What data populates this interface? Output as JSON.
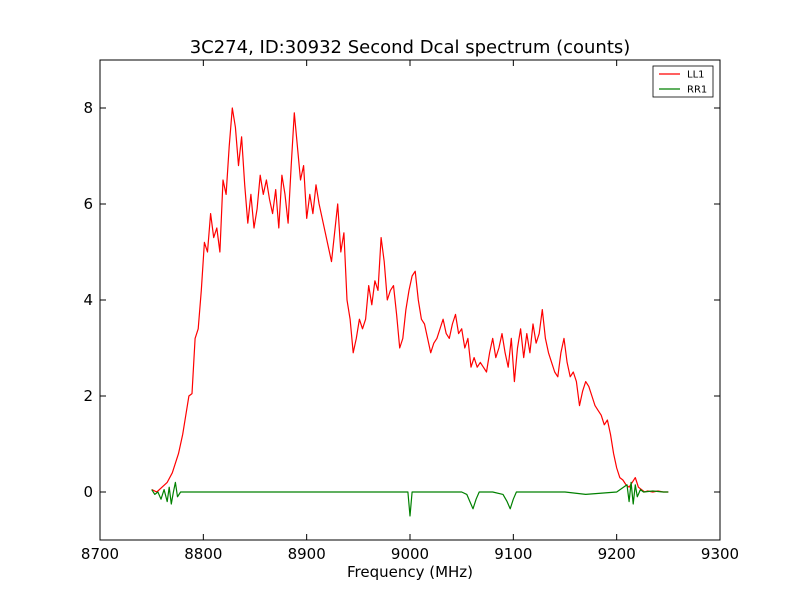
{
  "chart_data": {
    "type": "line",
    "title": "3C274, ID:30932 Second Dcal spectrum (counts)",
    "xlabel": "Frequency (MHz)",
    "ylabel": "",
    "xlim": [
      8700,
      9300
    ],
    "ylim": [
      -1,
      9
    ],
    "xticks": [
      8700,
      8800,
      8900,
      9000,
      9100,
      9200,
      9300
    ],
    "yticks": [
      0,
      2,
      4,
      6,
      8
    ],
    "grid": false,
    "legend_position": "top-right",
    "series": [
      {
        "name": "LL1",
        "color": "#ff0000",
        "points": [
          [
            8750,
            0.05
          ],
          [
            8755,
            0.0
          ],
          [
            8760,
            0.1
          ],
          [
            8765,
            0.2
          ],
          [
            8770,
            0.4
          ],
          [
            8773,
            0.6
          ],
          [
            8776,
            0.8
          ],
          [
            8780,
            1.2
          ],
          [
            8783,
            1.6
          ],
          [
            8786,
            2.0
          ],
          [
            8789,
            2.05
          ],
          [
            8792,
            3.2
          ],
          [
            8795,
            3.4
          ],
          [
            8798,
            4.2
          ],
          [
            8801,
            5.2
          ],
          [
            8804,
            5.0
          ],
          [
            8807,
            5.8
          ],
          [
            8810,
            5.3
          ],
          [
            8813,
            5.5
          ],
          [
            8816,
            5.0
          ],
          [
            8819,
            6.5
          ],
          [
            8822,
            6.2
          ],
          [
            8825,
            7.2
          ],
          [
            8828,
            8.0
          ],
          [
            8831,
            7.6
          ],
          [
            8834,
            6.8
          ],
          [
            8837,
            7.4
          ],
          [
            8840,
            6.4
          ],
          [
            8843,
            5.6
          ],
          [
            8846,
            6.2
          ],
          [
            8849,
            5.5
          ],
          [
            8852,
            5.9
          ],
          [
            8855,
            6.6
          ],
          [
            8858,
            6.2
          ],
          [
            8861,
            6.5
          ],
          [
            8864,
            6.1
          ],
          [
            8867,
            5.8
          ],
          [
            8870,
            6.3
          ],
          [
            8873,
            5.5
          ],
          [
            8876,
            6.6
          ],
          [
            8879,
            6.2
          ],
          [
            8882,
            5.6
          ],
          [
            8885,
            6.8
          ],
          [
            8888,
            7.9
          ],
          [
            8891,
            7.2
          ],
          [
            8894,
            6.5
          ],
          [
            8897,
            6.8
          ],
          [
            8900,
            5.7
          ],
          [
            8903,
            6.2
          ],
          [
            8906,
            5.8
          ],
          [
            8909,
            6.4
          ],
          [
            8912,
            6.0
          ],
          [
            8915,
            5.7
          ],
          [
            8918,
            5.4
          ],
          [
            8921,
            5.1
          ],
          [
            8924,
            4.8
          ],
          [
            8927,
            5.4
          ],
          [
            8930,
            6.0
          ],
          [
            8933,
            5.0
          ],
          [
            8936,
            5.4
          ],
          [
            8939,
            4.0
          ],
          [
            8942,
            3.6
          ],
          [
            8945,
            2.9
          ],
          [
            8948,
            3.2
          ],
          [
            8951,
            3.6
          ],
          [
            8954,
            3.4
          ],
          [
            8957,
            3.6
          ],
          [
            8960,
            4.3
          ],
          [
            8963,
            3.9
          ],
          [
            8966,
            4.4
          ],
          [
            8969,
            4.2
          ],
          [
            8972,
            5.3
          ],
          [
            8975,
            4.8
          ],
          [
            8978,
            4.0
          ],
          [
            8981,
            4.2
          ],
          [
            8984,
            4.3
          ],
          [
            8987,
            3.7
          ],
          [
            8990,
            3.0
          ],
          [
            8993,
            3.2
          ],
          [
            8996,
            3.8
          ],
          [
            8999,
            4.2
          ],
          [
            9002,
            4.5
          ],
          [
            9005,
            4.6
          ],
          [
            9008,
            4.0
          ],
          [
            9011,
            3.6
          ],
          [
            9014,
            3.5
          ],
          [
            9017,
            3.2
          ],
          [
            9020,
            2.9
          ],
          [
            9023,
            3.1
          ],
          [
            9026,
            3.2
          ],
          [
            9029,
            3.4
          ],
          [
            9032,
            3.6
          ],
          [
            9035,
            3.3
          ],
          [
            9038,
            3.2
          ],
          [
            9041,
            3.5
          ],
          [
            9044,
            3.7
          ],
          [
            9047,
            3.3
          ],
          [
            9050,
            3.4
          ],
          [
            9053,
            3.0
          ],
          [
            9056,
            3.2
          ],
          [
            9059,
            2.6
          ],
          [
            9062,
            2.8
          ],
          [
            9065,
            2.6
          ],
          [
            9068,
            2.7
          ],
          [
            9071,
            2.6
          ],
          [
            9074,
            2.5
          ],
          [
            9077,
            2.9
          ],
          [
            9080,
            3.2
          ],
          [
            9083,
            2.8
          ],
          [
            9086,
            3.0
          ],
          [
            9089,
            3.3
          ],
          [
            9092,
            2.9
          ],
          [
            9095,
            2.6
          ],
          [
            9098,
            3.2
          ],
          [
            9101,
            2.3
          ],
          [
            9104,
            3.0
          ],
          [
            9107,
            3.4
          ],
          [
            9110,
            2.8
          ],
          [
            9113,
            3.3
          ],
          [
            9116,
            2.9
          ],
          [
            9119,
            3.5
          ],
          [
            9122,
            3.1
          ],
          [
            9125,
            3.3
          ],
          [
            9128,
            3.8
          ],
          [
            9131,
            3.2
          ],
          [
            9134,
            2.9
          ],
          [
            9137,
            2.7
          ],
          [
            9140,
            2.5
          ],
          [
            9143,
            2.4
          ],
          [
            9146,
            2.9
          ],
          [
            9149,
            3.2
          ],
          [
            9152,
            2.7
          ],
          [
            9155,
            2.4
          ],
          [
            9158,
            2.5
          ],
          [
            9161,
            2.3
          ],
          [
            9164,
            1.8
          ],
          [
            9167,
            2.1
          ],
          [
            9170,
            2.3
          ],
          [
            9173,
            2.2
          ],
          [
            9176,
            2.0
          ],
          [
            9179,
            1.8
          ],
          [
            9182,
            1.7
          ],
          [
            9185,
            1.6
          ],
          [
            9188,
            1.4
          ],
          [
            9191,
            1.5
          ],
          [
            9194,
            1.2
          ],
          [
            9197,
            0.8
          ],
          [
            9200,
            0.5
          ],
          [
            9203,
            0.3
          ],
          [
            9206,
            0.25
          ],
          [
            9209,
            0.15
          ],
          [
            9212,
            0.1
          ],
          [
            9215,
            0.2
          ],
          [
            9218,
            0.3
          ],
          [
            9221,
            0.1
          ],
          [
            9224,
            0.05
          ],
          [
            9227,
            0.0
          ],
          [
            9230,
            0.02
          ],
          [
            9235,
            0.0
          ],
          [
            9240,
            0.02
          ],
          [
            9245,
            0.0
          ],
          [
            9250,
            0.0
          ]
        ]
      },
      {
        "name": "RR1",
        "color": "#008000",
        "points": [
          [
            8750,
            0.05
          ],
          [
            8753,
            -0.05
          ],
          [
            8756,
            0.0
          ],
          [
            8759,
            -0.15
          ],
          [
            8762,
            0.05
          ],
          [
            8765,
            -0.2
          ],
          [
            8767,
            0.1
          ],
          [
            8769,
            -0.25
          ],
          [
            8771,
            0.0
          ],
          [
            8773,
            0.2
          ],
          [
            8775,
            -0.1
          ],
          [
            8778,
            0.0
          ],
          [
            8800,
            0.0
          ],
          [
            8850,
            0.0
          ],
          [
            8900,
            0.0
          ],
          [
            8950,
            0.0
          ],
          [
            8998,
            0.0
          ],
          [
            9000,
            -0.5
          ],
          [
            9002,
            0.0
          ],
          [
            9050,
            0.0
          ],
          [
            9055,
            -0.05
          ],
          [
            9058,
            -0.2
          ],
          [
            9061,
            -0.35
          ],
          [
            9064,
            -0.15
          ],
          [
            9067,
            0.0
          ],
          [
            9080,
            0.0
          ],
          [
            9090,
            -0.05
          ],
          [
            9094,
            -0.2
          ],
          [
            9097,
            -0.35
          ],
          [
            9100,
            -0.15
          ],
          [
            9103,
            0.0
          ],
          [
            9150,
            0.0
          ],
          [
            9170,
            -0.05
          ],
          [
            9200,
            0.0
          ],
          [
            9210,
            0.15
          ],
          [
            9212,
            -0.2
          ],
          [
            9214,
            0.2
          ],
          [
            9216,
            -0.25
          ],
          [
            9218,
            0.15
          ],
          [
            9220,
            -0.1
          ],
          [
            9223,
            0.05
          ],
          [
            9226,
            0.0
          ],
          [
            9235,
            0.02
          ],
          [
            9245,
            0.0
          ],
          [
            9250,
            0.0
          ]
        ]
      }
    ]
  }
}
